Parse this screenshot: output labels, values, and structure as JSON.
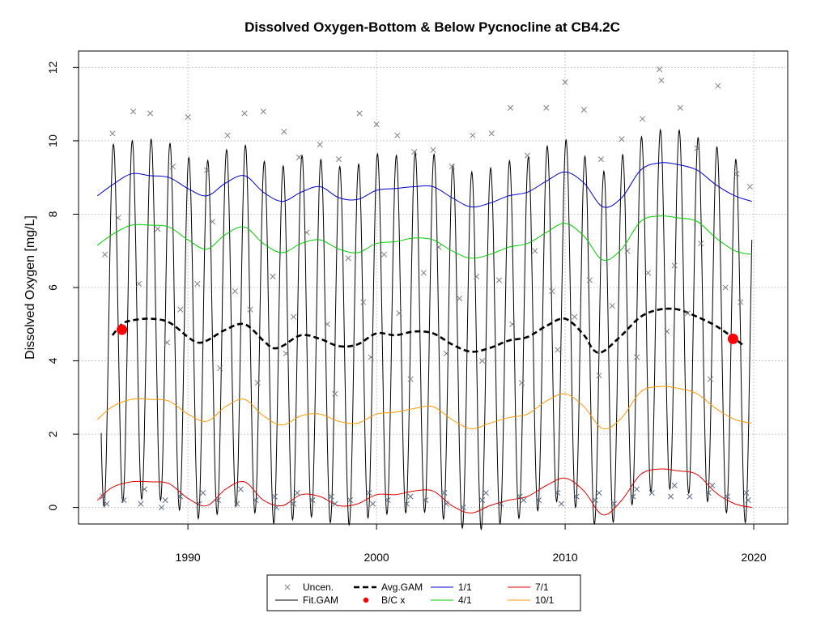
{
  "chart_data": {
    "type": "line",
    "title": "Dissolved Oxygen-Bottom & Below Pycnocline at CB4.2C",
    "xlabel": "",
    "ylabel": "Dissolved Oxygen [mg/L]",
    "xlim": [
      1984.2,
      2021.8
    ],
    "ylim": [
      -0.45,
      12.45
    ],
    "x_ticks": [
      1990,
      2000,
      2010,
      2020
    ],
    "y_ticks": [
      0,
      2,
      4,
      6,
      8,
      10,
      12
    ],
    "grid": true,
    "legend_position": "bottom-center",
    "colors": {
      "uncensored": "#7f7f7f",
      "fit_gam": "#000000",
      "avg_gam": "#000000",
      "bc_marker": "#ff0000",
      "q_1_1": "#0000cc",
      "q_4_1": "#00cc00",
      "q_7_1": "#dd0000",
      "q_10_1": "#ff9900",
      "grid": "#c8c8c8"
    },
    "legend": [
      {
        "label": "Uncen.",
        "key": "uncensored",
        "symbol": "x"
      },
      {
        "label": "Fit.GAM",
        "key": "fit_gam",
        "symbol": "line"
      },
      {
        "label": "Avg.GAM",
        "key": "avg_gam",
        "symbol": "dash"
      },
      {
        "label": "B/C x",
        "key": "bc_marker",
        "symbol": "dot"
      },
      {
        "label": "1/1",
        "key": "q_1_1",
        "symbol": "line"
      },
      {
        "label": "4/1",
        "key": "q_4_1",
        "symbol": "line"
      },
      {
        "label": "7/1",
        "key": "q_7_1",
        "symbol": "line"
      },
      {
        "label": "10/1",
        "key": "q_10_1",
        "symbol": "line"
      }
    ],
    "series": [
      {
        "name": "1/1",
        "key": "q_1_1",
        "x": [
          1985.2,
          1986,
          1987,
          1988,
          1989,
          1990,
          1991,
          1992,
          1993,
          1994,
          1995,
          1996,
          1997,
          1998,
          1999,
          2000,
          2001,
          2002,
          2003,
          2004,
          2005,
          2006,
          2007,
          2008,
          2009,
          2010,
          2011,
          2012,
          2013,
          2014,
          2015,
          2016,
          2017,
          2018,
          2019,
          2019.9
        ],
        "y": [
          8.5,
          8.8,
          9.1,
          9.05,
          9.0,
          8.7,
          8.5,
          8.85,
          9.05,
          8.6,
          8.35,
          8.6,
          8.75,
          8.45,
          8.4,
          8.65,
          8.7,
          8.75,
          8.75,
          8.45,
          8.2,
          8.3,
          8.5,
          8.6,
          8.9,
          9.15,
          8.85,
          8.2,
          8.45,
          9.2,
          9.4,
          9.35,
          9.2,
          8.8,
          8.5,
          8.35
        ]
      },
      {
        "name": "4/1",
        "key": "q_4_1",
        "x": [
          1985.2,
          1986,
          1987,
          1988,
          1989,
          1990,
          1991,
          1992,
          1993,
          1994,
          1995,
          1996,
          1997,
          1998,
          1999,
          2000,
          2001,
          2002,
          2003,
          2004,
          2005,
          2006,
          2007,
          2008,
          2009,
          2010,
          2011,
          2012,
          2013,
          2014,
          2015,
          2016,
          2017,
          2018,
          2019,
          2019.9
        ],
        "y": [
          7.15,
          7.45,
          7.7,
          7.7,
          7.65,
          7.3,
          7.05,
          7.45,
          7.65,
          7.2,
          6.95,
          7.2,
          7.3,
          7.05,
          6.95,
          7.2,
          7.25,
          7.35,
          7.3,
          7.0,
          6.8,
          6.9,
          7.1,
          7.2,
          7.5,
          7.75,
          7.4,
          6.75,
          7.05,
          7.8,
          7.95,
          7.9,
          7.8,
          7.35,
          7.0,
          6.9
        ]
      },
      {
        "name": "10/1",
        "key": "q_10_1",
        "x": [
          1985.2,
          1986,
          1987,
          1988,
          1989,
          1990,
          1991,
          1992,
          1993,
          1994,
          1995,
          1996,
          1997,
          1998,
          1999,
          2000,
          2001,
          2002,
          2003,
          2004,
          2005,
          2006,
          2007,
          2008,
          2009,
          2010,
          2011,
          2012,
          2013,
          2014,
          2015,
          2016,
          2017,
          2018,
          2019,
          2019.9
        ],
        "y": [
          2.4,
          2.75,
          2.95,
          2.95,
          2.9,
          2.55,
          2.35,
          2.75,
          2.95,
          2.5,
          2.25,
          2.5,
          2.55,
          2.35,
          2.3,
          2.55,
          2.6,
          2.7,
          2.75,
          2.4,
          2.15,
          2.3,
          2.45,
          2.55,
          2.9,
          3.1,
          2.75,
          2.15,
          2.45,
          3.15,
          3.3,
          3.25,
          3.1,
          2.7,
          2.4,
          2.3
        ]
      },
      {
        "name": "7/1",
        "key": "q_7_1",
        "x": [
          1985.2,
          1986,
          1987,
          1988,
          1989,
          1990,
          1991,
          1992,
          1993,
          1994,
          1995,
          1996,
          1997,
          1998,
          1999,
          2000,
          2001,
          2002,
          2003,
          2004,
          2005,
          2006,
          2007,
          2008,
          2009,
          2010,
          2011,
          2012,
          2013,
          2014,
          2015,
          2016,
          2017,
          2018,
          2019,
          2019.9
        ],
        "y": [
          0.2,
          0.55,
          0.7,
          0.7,
          0.65,
          0.25,
          0.05,
          0.5,
          0.7,
          0.2,
          0.05,
          0.35,
          0.3,
          0.05,
          0.1,
          0.35,
          0.35,
          0.45,
          0.45,
          0.05,
          -0.15,
          0.05,
          0.2,
          0.3,
          0.6,
          0.8,
          0.45,
          -0.2,
          0.2,
          0.9,
          1.05,
          1.0,
          0.9,
          0.4,
          0.1,
          0.0
        ]
      },
      {
        "name": "Avg.GAM",
        "key": "avg_gam",
        "x": [
          1986,
          1986.5,
          1987,
          1988,
          1989,
          1990,
          1990.5,
          1991,
          1992,
          1993,
          1994,
          1994.5,
          1995,
          1996,
          1997,
          1998,
          1999,
          2000,
          2001,
          2002,
          2003,
          2004,
          2005,
          2006,
          2007,
          2008,
          2009,
          2010,
          2011,
          2011.5,
          2012,
          2013,
          2014,
          2015,
          2016,
          2017,
          2018,
          2019,
          2019.5
        ],
        "y": [
          4.7,
          5.0,
          5.1,
          5.15,
          5.05,
          4.65,
          4.5,
          4.55,
          4.85,
          5.0,
          4.55,
          4.35,
          4.4,
          4.7,
          4.6,
          4.4,
          4.45,
          4.75,
          4.7,
          4.8,
          4.75,
          4.45,
          4.25,
          4.35,
          4.55,
          4.65,
          4.95,
          5.15,
          4.7,
          4.3,
          4.25,
          4.7,
          5.2,
          5.4,
          5.4,
          5.2,
          4.95,
          4.6,
          4.4
        ]
      }
    ],
    "fit_gam": {
      "start_year": 1985.4,
      "end_year": 2019.9,
      "annual_mean": [
        [
          1985,
          4.85
        ],
        [
          1986,
          5.0
        ],
        [
          1987,
          5.1
        ],
        [
          1988,
          5.15
        ],
        [
          1989,
          5.05
        ],
        [
          1990,
          4.65
        ],
        [
          1991,
          4.55
        ],
        [
          1992,
          4.85
        ],
        [
          1993,
          5.0
        ],
        [
          1994,
          4.55
        ],
        [
          1995,
          4.4
        ],
        [
          1996,
          4.7
        ],
        [
          1997,
          4.6
        ],
        [
          1998,
          4.4
        ],
        [
          1999,
          4.45
        ],
        [
          2000,
          4.75
        ],
        [
          2001,
          4.7
        ],
        [
          2002,
          4.8
        ],
        [
          2003,
          4.75
        ],
        [
          2004,
          4.45
        ],
        [
          2005,
          4.25
        ],
        [
          2006,
          4.35
        ],
        [
          2007,
          4.55
        ],
        [
          2008,
          4.65
        ],
        [
          2009,
          4.95
        ],
        [
          2010,
          5.15
        ],
        [
          2011,
          4.7
        ],
        [
          2012,
          4.25
        ],
        [
          2013,
          4.7
        ],
        [
          2014,
          5.2
        ],
        [
          2015,
          5.4
        ],
        [
          2016,
          5.4
        ],
        [
          2017,
          5.2
        ],
        [
          2018,
          4.95
        ],
        [
          2019,
          4.6
        ],
        [
          2020,
          4.4
        ]
      ],
      "annual_amplitude": 4.9
    },
    "bc_points": [
      {
        "x": 1986.5,
        "y": 4.85
      },
      {
        "x": 2018.9,
        "y": 4.6
      }
    ],
    "observations": {
      "high": [
        [
          1986.0,
          10.2
        ],
        [
          1987.1,
          10.8
        ],
        [
          1988.0,
          10.75
        ],
        [
          1989.2,
          9.3
        ],
        [
          1990.0,
          10.65
        ],
        [
          1991.0,
          9.2
        ],
        [
          1992.1,
          10.15
        ],
        [
          1993.0,
          10.75
        ],
        [
          1994.0,
          10.8
        ],
        [
          1995.1,
          10.25
        ],
        [
          1995.9,
          9.55
        ],
        [
          1997.0,
          9.9
        ],
        [
          1998.0,
          9.5
        ],
        [
          1999.1,
          10.75
        ],
        [
          2000.0,
          10.45
        ],
        [
          2001.1,
          10.15
        ],
        [
          2002.0,
          9.7
        ],
        [
          2003.0,
          9.75
        ],
        [
          2004.0,
          9.3
        ],
        [
          2005.1,
          10.15
        ],
        [
          2006.1,
          10.2
        ],
        [
          2007.1,
          10.9
        ],
        [
          2008.0,
          9.6
        ],
        [
          2009.0,
          10.9
        ],
        [
          2010.0,
          11.6
        ],
        [
          2011.0,
          10.85
        ],
        [
          2011.9,
          9.5
        ],
        [
          2013.0,
          10.05
        ],
        [
          2014.1,
          10.6
        ],
        [
          2015.0,
          11.95
        ],
        [
          2015.1,
          11.65
        ],
        [
          2016.1,
          10.9
        ],
        [
          2017.0,
          9.8
        ],
        [
          2018.1,
          11.5
        ],
        [
          2019.1,
          9.1
        ],
        [
          2019.8,
          8.75
        ]
      ],
      "mid": [
        [
          1985.6,
          6.9
        ],
        [
          1986.3,
          7.9
        ],
        [
          1987.4,
          6.1
        ],
        [
          1988.4,
          7.6
        ],
        [
          1988.9,
          4.5
        ],
        [
          1989.6,
          5.4
        ],
        [
          1990.5,
          6.1
        ],
        [
          1991.3,
          7.8
        ],
        [
          1991.7,
          3.8
        ],
        [
          1992.5,
          5.9
        ],
        [
          1993.3,
          5.4
        ],
        [
          1993.7,
          3.4
        ],
        [
          1994.5,
          6.3
        ],
        [
          1995.2,
          4.2
        ],
        [
          1995.6,
          5.2
        ],
        [
          1996.3,
          7.5
        ],
        [
          1997.4,
          5.0
        ],
        [
          1997.8,
          3.1
        ],
        [
          1998.5,
          6.8
        ],
        [
          1999.3,
          5.6
        ],
        [
          1999.7,
          4.1
        ],
        [
          2000.4,
          6.9
        ],
        [
          2001.2,
          5.3
        ],
        [
          2001.8,
          3.5
        ],
        [
          2002.5,
          6.4
        ],
        [
          2003.3,
          7.1
        ],
        [
          2003.7,
          4.2
        ],
        [
          2004.4,
          5.7
        ],
        [
          2005.3,
          6.3
        ],
        [
          2005.6,
          4.0
        ],
        [
          2006.5,
          6.2
        ],
        [
          2007.2,
          5.0
        ],
        [
          2007.7,
          3.4
        ],
        [
          2008.4,
          7.0
        ],
        [
          2009.3,
          5.9
        ],
        [
          2009.6,
          4.3
        ],
        [
          2010.5,
          5.2
        ],
        [
          2011.3,
          6.2
        ],
        [
          2011.8,
          3.6
        ],
        [
          2012.5,
          5.5
        ],
        [
          2013.3,
          7.0
        ],
        [
          2013.8,
          4.1
        ],
        [
          2014.4,
          6.4
        ],
        [
          2015.4,
          4.8
        ],
        [
          2015.8,
          6.6
        ],
        [
          2016.5,
          5.3
        ],
        [
          2017.2,
          7.2
        ],
        [
          2017.7,
          3.5
        ],
        [
          2018.5,
          6.0
        ],
        [
          2019.3,
          5.6
        ]
      ],
      "low": [
        [
          1985.5,
          0.3
        ],
        [
          1985.7,
          0.1
        ],
        [
          1986.6,
          0.2
        ],
        [
          1987.5,
          0.1
        ],
        [
          1987.7,
          0.5
        ],
        [
          1988.6,
          0.0
        ],
        [
          1988.8,
          0.2
        ],
        [
          1989.6,
          0.3
        ],
        [
          1990.6,
          0.1
        ],
        [
          1990.8,
          0.4
        ],
        [
          1991.6,
          0.2
        ],
        [
          1992.6,
          0.1
        ],
        [
          1992.8,
          0.5
        ],
        [
          1993.6,
          0.2
        ],
        [
          1994.6,
          0.3
        ],
        [
          1994.7,
          0.0
        ],
        [
          1995.6,
          0.1
        ],
        [
          1995.8,
          0.4
        ],
        [
          1996.6,
          0.2
        ],
        [
          1997.6,
          0.3
        ],
        [
          1997.8,
          0.1
        ],
        [
          1998.6,
          0.2
        ],
        [
          1999.6,
          0.4
        ],
        [
          1999.8,
          0.1
        ],
        [
          2000.6,
          0.2
        ],
        [
          2001.6,
          0.1
        ],
        [
          2001.8,
          0.3
        ],
        [
          2002.6,
          0.2
        ],
        [
          2003.6,
          0.4
        ],
        [
          2003.7,
          0.1
        ],
        [
          2004.6,
          0.0
        ],
        [
          2005.6,
          0.2
        ],
        [
          2005.8,
          0.4
        ],
        [
          2006.6,
          0.1
        ],
        [
          2007.6,
          0.3
        ],
        [
          2007.8,
          0.2
        ],
        [
          2008.6,
          0.2
        ],
        [
          2009.6,
          0.4
        ],
        [
          2009.8,
          0.1
        ],
        [
          2010.6,
          0.3
        ],
        [
          2011.6,
          0.2
        ],
        [
          2011.8,
          0.4
        ],
        [
          2012.6,
          0.1
        ],
        [
          2013.6,
          0.3
        ],
        [
          2013.8,
          0.5
        ],
        [
          2014.6,
          0.4
        ],
        [
          2015.6,
          0.3
        ],
        [
          2015.8,
          0.6
        ],
        [
          2016.6,
          0.3
        ],
        [
          2017.6,
          0.4
        ],
        [
          2017.8,
          0.6
        ],
        [
          2018.6,
          0.3
        ],
        [
          2019.6,
          0.4
        ],
        [
          2019.7,
          0.2
        ]
      ]
    }
  }
}
